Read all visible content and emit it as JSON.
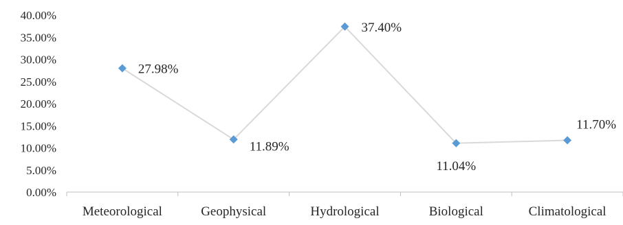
{
  "chart_data": {
    "type": "line",
    "categories": [
      "Meteorological",
      "Geophysical",
      "Hydrological",
      "Biological",
      "Climatological"
    ],
    "series": [
      {
        "values": [
          27.98,
          11.89,
          37.4,
          11.04,
          11.7
        ],
        "labels": [
          "27.98%",
          "11.89%",
          "37.40%",
          "11.04%",
          "11.70%"
        ]
      }
    ],
    "yticks": [
      "0.00%",
      "5.00%",
      "10.00%",
      "15.00%",
      "20.00%",
      "25.00%",
      "30.00%",
      "35.00%",
      "40.00%"
    ],
    "ylim": [
      0,
      40
    ],
    "grid": false,
    "legend": "none",
    "title": "",
    "xlabel": "",
    "ylabel": "",
    "colors": {
      "line": "#d9d9d9",
      "marker": "#5b9bd5",
      "axis": "#bfbfbf",
      "text": "#262626"
    }
  }
}
